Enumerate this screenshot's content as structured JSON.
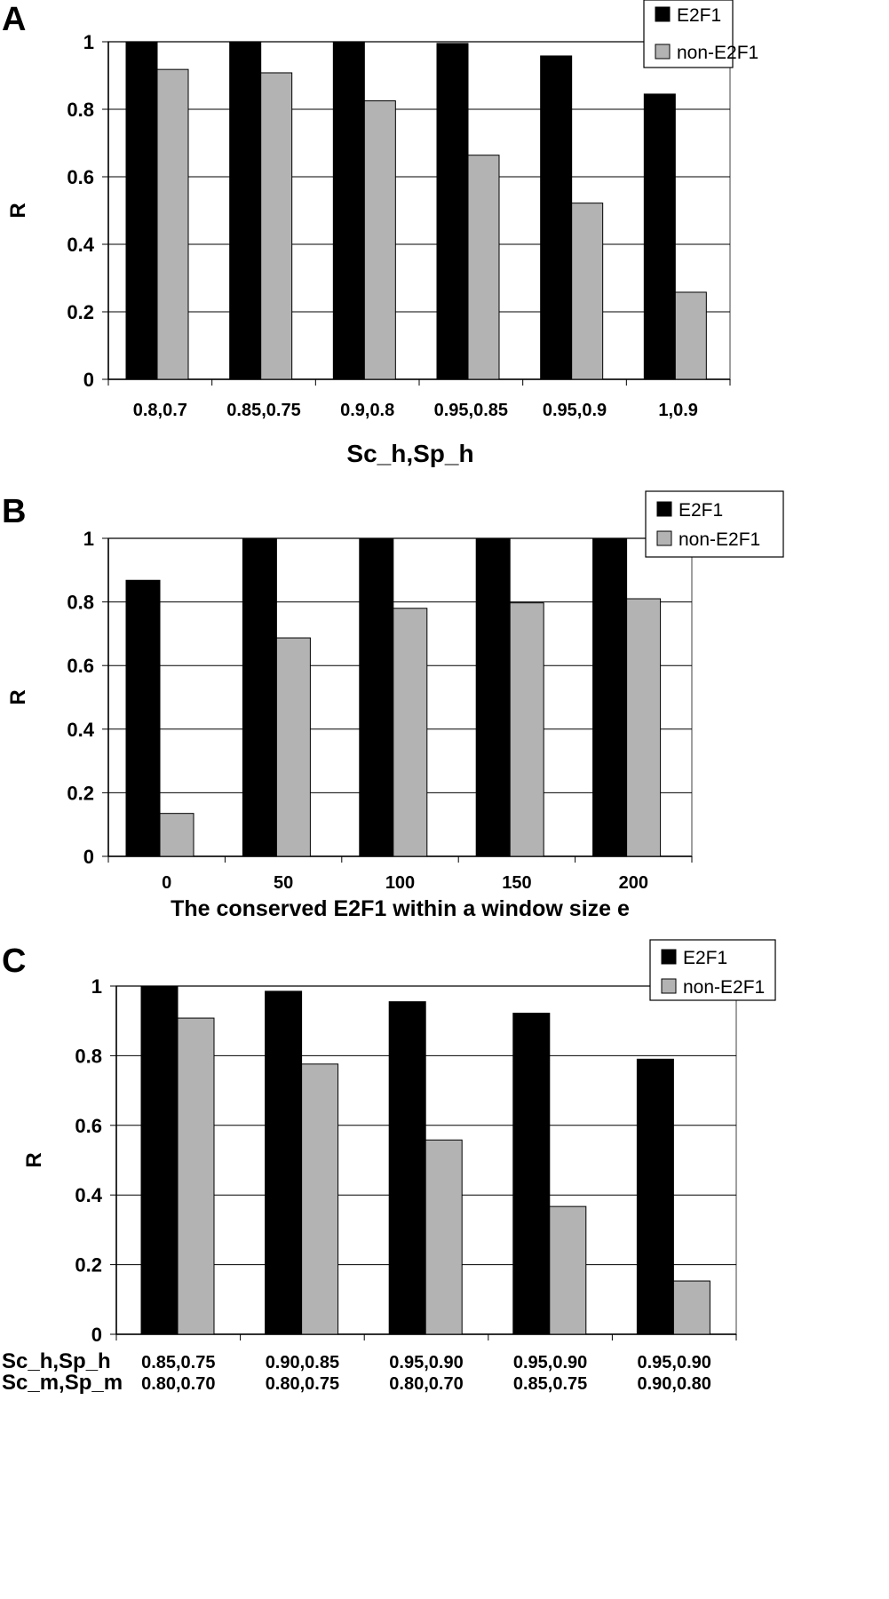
{
  "chart_data": [
    {
      "type": "bar",
      "panel_label": "A",
      "categories": [
        "0.8,0.7",
        "0.85,0.75",
        "0.9,0.8",
        "0.95,0.85",
        "0.95,0.9",
        "1,0.9"
      ],
      "series": [
        {
          "name": "E2F1",
          "values": [
            1.0,
            1.0,
            1.0,
            0.995,
            0.958,
            0.845
          ],
          "color": "#000000"
        },
        {
          "name": "non-E2F1",
          "values": [
            0.918,
            0.908,
            0.825,
            0.664,
            0.522,
            0.258
          ],
          "color": "#b3b3b3"
        }
      ],
      "xlabel": "Sc_h,Sp_h",
      "ylabel": "R",
      "ylim": [
        0,
        1
      ],
      "yticks": [
        "0",
        "0.2",
        "0.4",
        "0.6",
        "0.8",
        "1"
      ],
      "grid": true,
      "legend_position": "top-right"
    },
    {
      "type": "bar",
      "panel_label": "B",
      "categories": [
        "0",
        "50",
        "100",
        "150",
        "200"
      ],
      "series": [
        {
          "name": "E2F1",
          "values": [
            0.868,
            1.0,
            1.0,
            1.0,
            1.0
          ],
          "color": "#000000"
        },
        {
          "name": "non-E2F1",
          "values": [
            0.135,
            0.687,
            0.78,
            0.797,
            0.81
          ],
          "color": "#b3b3b3"
        }
      ],
      "xlabel": "The conserved E2F1 within a window size e",
      "ylabel": "R",
      "ylim": [
        0,
        1
      ],
      "yticks": [
        "0",
        "0.2",
        "0.4",
        "0.6",
        "0.8",
        "1"
      ],
      "grid": true,
      "legend_position": "top-right"
    },
    {
      "type": "bar",
      "panel_label": "C",
      "categories": [
        [
          "0.85,0.75",
          "0.80,0.70"
        ],
        [
          "0.90,0.85",
          "0.80,0.75"
        ],
        [
          "0.95,0.90",
          "0.80,0.70"
        ],
        [
          "0.95,0.90",
          "0.85,0.75"
        ],
        [
          "0.95,0.90",
          "0.90,0.80"
        ]
      ],
      "category_row_labels": [
        "Sc_h,Sp_h",
        "Sc_m,Sp_m"
      ],
      "series": [
        {
          "name": "E2F1",
          "values": [
            1.0,
            0.985,
            0.955,
            0.922,
            0.79
          ],
          "color": "#000000"
        },
        {
          "name": "non-E2F1",
          "values": [
            0.908,
            0.776,
            0.558,
            0.367,
            0.153
          ],
          "color": "#b3b3b3"
        }
      ],
      "xlabel": "",
      "ylabel": "R",
      "ylim": [
        0,
        1
      ],
      "yticks": [
        "0",
        "0.2",
        "0.4",
        "0.6",
        "0.8",
        "1"
      ],
      "grid": true,
      "legend_position": "top-right"
    }
  ]
}
